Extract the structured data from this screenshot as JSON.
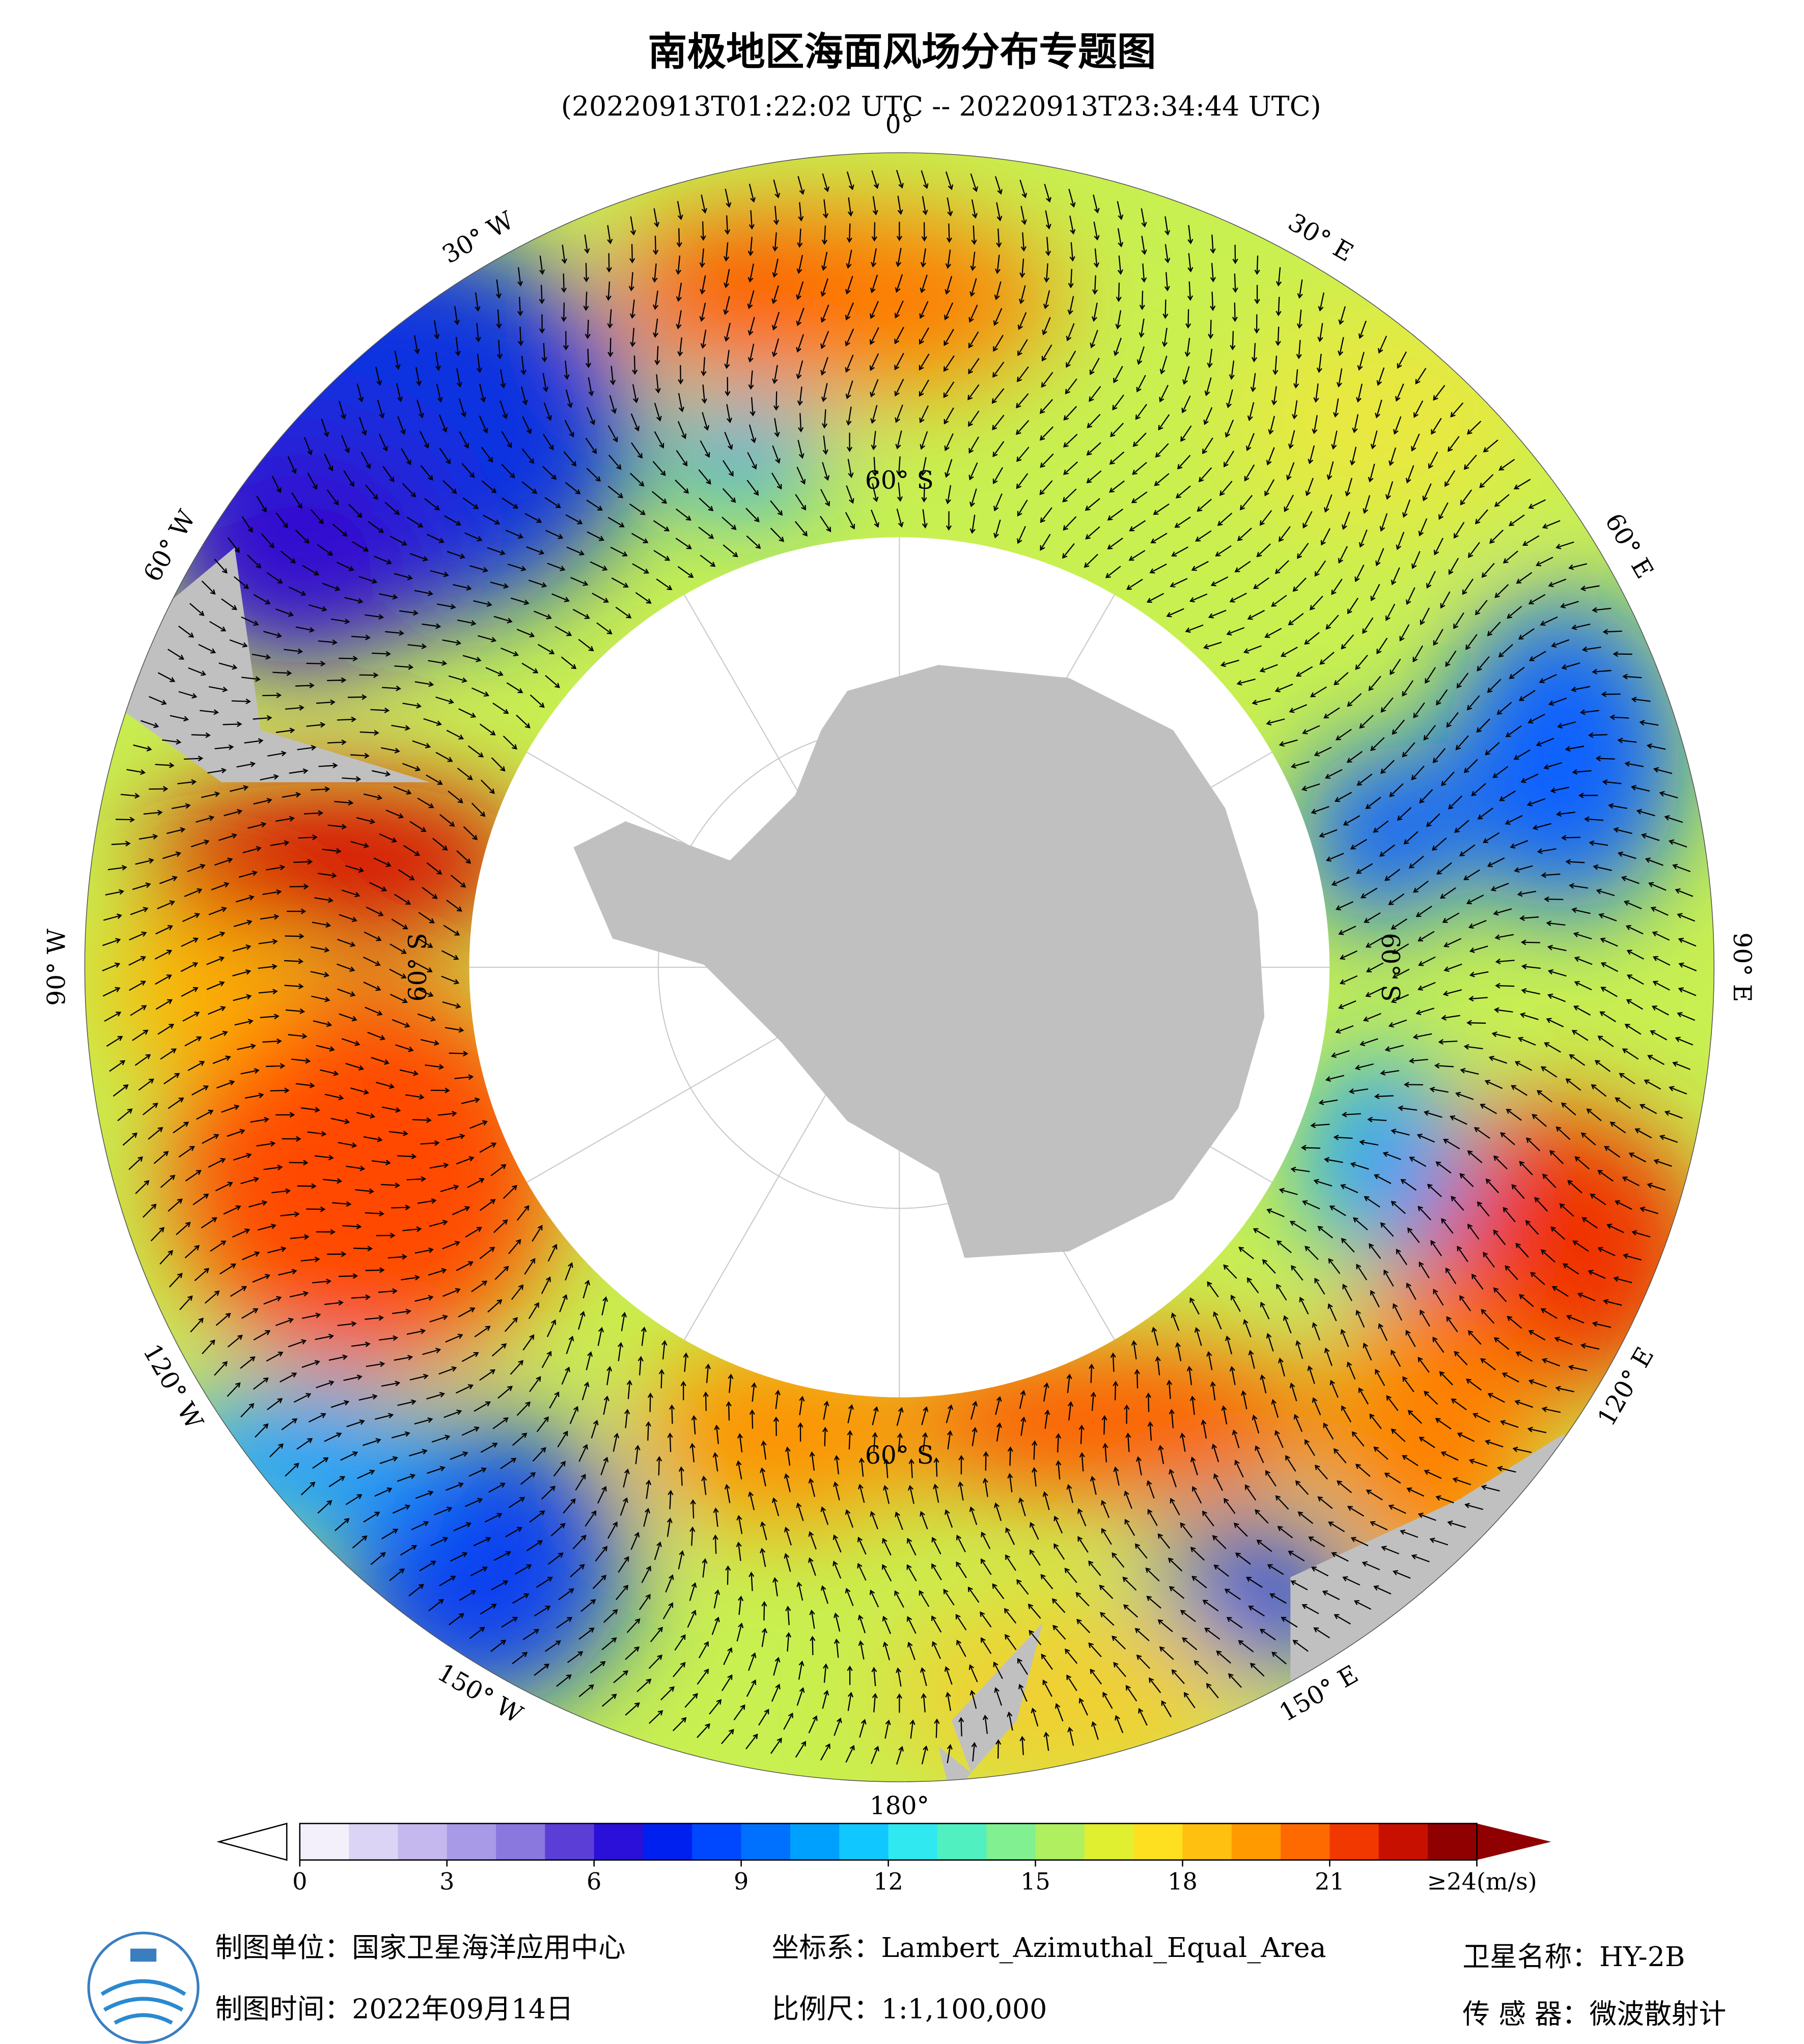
{
  "title": "南极地区海面风场分布专题图",
  "subtitle": "(20220913T01:22:02 UTC -- 20220913T23:34:44 UTC)",
  "longitude_labels": [
    "0°",
    "30° E",
    "60° E",
    "90° E",
    "120° E",
    "150° E",
    "180°",
    "150° W",
    "120° W",
    "90° W",
    "60° W",
    "30° W"
  ],
  "latitude_label": "60° S",
  "colorbar": {
    "lim": [
      0,
      24
    ],
    "ticks": [
      0,
      3,
      6,
      9,
      12,
      15,
      18,
      21,
      {
        "value": 24,
        "label": "≥24(m/s)"
      }
    ],
    "colors": [
      "#f4f0fb",
      "#dcd4f4",
      "#c4b8ee",
      "#a89ae6",
      "#8a78de",
      "#5a3ed6",
      "#2a10d8",
      "#0020f0",
      "#0048ff",
      "#0070ff",
      "#00a0ff",
      "#10c8ff",
      "#30e8f0",
      "#50f0c0",
      "#80f090",
      "#b0f060",
      "#e0f030",
      "#ffe020",
      "#ffc010",
      "#ff9a00",
      "#ff6a00",
      "#f03800",
      "#c81000",
      "#900000"
    ]
  },
  "footer": {
    "producer": "制图单位：国家卫星海洋应用中心",
    "date": "制图时间：2022年09月14日",
    "projection": "坐标系：Lambert_Azimuthal_Equal_Area",
    "scale": "比例尺：1:1,100,000",
    "satellite": "卫星名称：HY-2B",
    "sensor": "传 感 器：微波散射计"
  }
}
